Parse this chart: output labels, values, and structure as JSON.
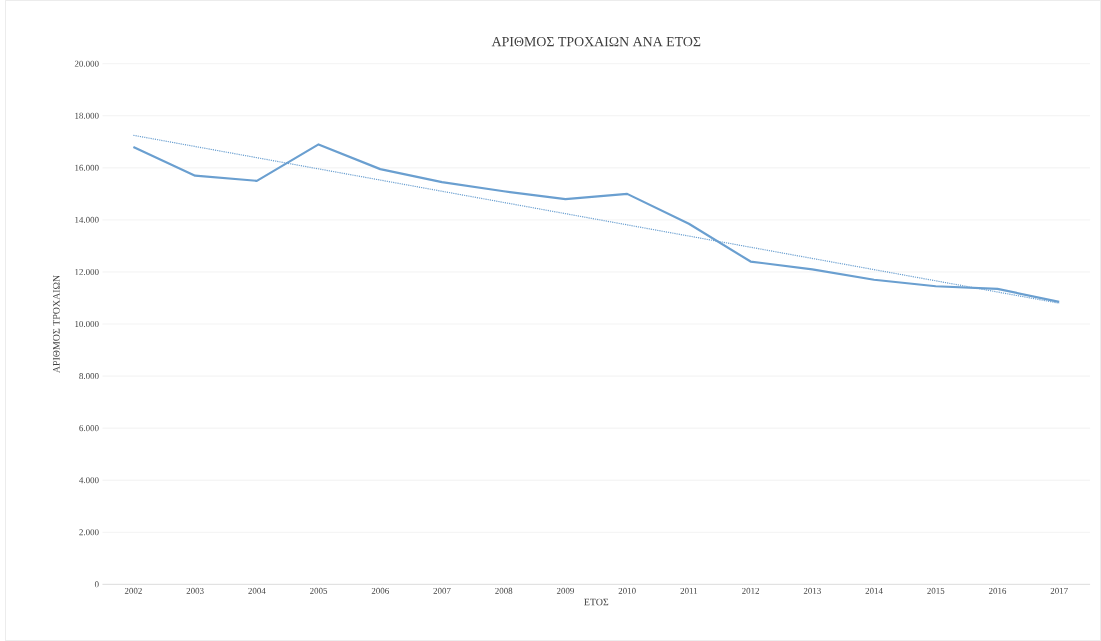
{
  "chart_data": {
    "type": "line",
    "title": "ΑΡΙΘΜΟΣ ΤΡΟΧΑΙΩΝ ΑΝΑ ΕΤΟΣ",
    "xlabel": "ΕΤΟΣ",
    "ylabel": "ΑΡΙΘΜΟΣ ΤΡΟΧΑΙΩΝ",
    "x": [
      2002,
      2003,
      2004,
      2005,
      2006,
      2007,
      2008,
      2009,
      2010,
      2011,
      2012,
      2013,
      2014,
      2015,
      2016,
      2017
    ],
    "series": [
      {
        "color": "#6a9fd0",
        "line_style": "solid",
        "values": [
          16800,
          15700,
          15500,
          16900,
          15950,
          15450,
          15100,
          14800,
          15000,
          13850,
          12400,
          12100,
          11700,
          11450,
          11350,
          10850
        ]
      },
      {
        "type": "line",
        "color": "#6a9fd0",
        "line_style": "dotted",
        "x": [
          2002,
          2017
        ],
        "values": [
          17250,
          10800
        ]
      }
    ],
    "xlim": [
      2001.5,
      2017.5
    ],
    "xticks": [
      2002,
      2003,
      2004,
      2005,
      2006,
      2007,
      2008,
      2009,
      2010,
      2011,
      2012,
      2013,
      2014,
      2015,
      2016,
      2017
    ],
    "ylim": [
      0,
      20000
    ],
    "yticks": [
      {
        "value": 0,
        "label": "0"
      },
      {
        "value": 2000,
        "label": "2.000"
      },
      {
        "value": 4000,
        "label": "4.000"
      },
      {
        "value": 6000,
        "label": "6.000"
      },
      {
        "value": 8000,
        "label": "8.000"
      },
      {
        "value": 10000,
        "label": "10.000"
      },
      {
        "value": 12000,
        "label": "12.000"
      },
      {
        "value": 14000,
        "label": "14.000"
      },
      {
        "value": 16000,
        "label": "16.000"
      },
      {
        "value": 18000,
        "label": "18.000"
      },
      {
        "value": 20000,
        "label": "20.000"
      }
    ],
    "grid": "y",
    "marker": "none"
  }
}
